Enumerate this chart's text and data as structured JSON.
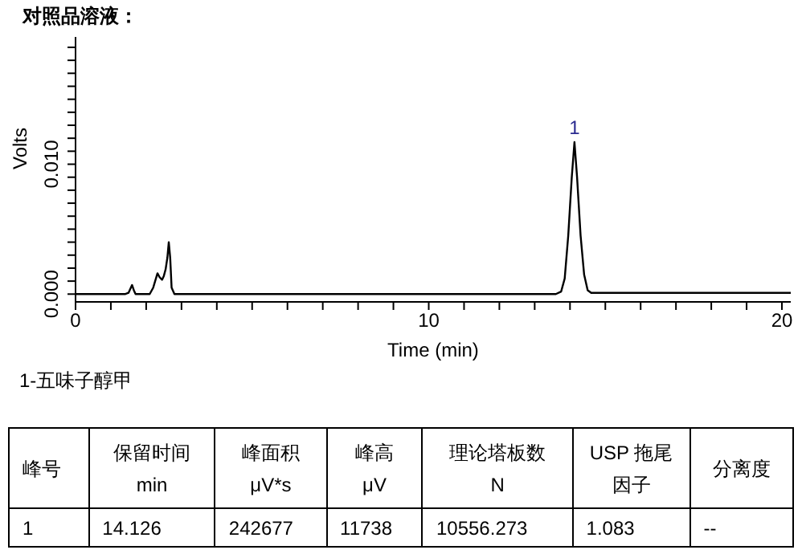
{
  "chart_data": {
    "type": "line",
    "title": "对照品溶液：",
    "xlabel": "Time (min)",
    "ylabel": "Volts",
    "x": [
      0,
      1.4,
      1.5,
      1.6,
      1.65,
      1.7,
      2.1,
      2.2,
      2.32,
      2.38,
      2.45,
      2.5,
      2.55,
      2.6,
      2.64,
      2.68,
      2.72,
      2.8,
      6,
      7,
      13.6,
      13.75,
      13.85,
      13.95,
      14.05,
      14.126,
      14.2,
      14.3,
      14.4,
      14.5,
      14.6,
      19,
      19.5,
      20.25
    ],
    "series": [
      {
        "color": "#000000",
        "values": [
          0,
          0,
          0.0001,
          0.0007,
          0.0003,
          0,
          0,
          0.0005,
          0.0016,
          0.0013,
          0.0011,
          0.0014,
          0.0019,
          0.0028,
          0.004,
          0.0028,
          0.0005,
          0,
          0,
          0,
          0,
          0.0002,
          0.0012,
          0.0045,
          0.009,
          0.0117,
          0.009,
          0.0045,
          0.0015,
          0.0003,
          0.0001,
          0.0001,
          0.0001,
          0.0001
        ]
      }
    ],
    "xlim": [
      0,
      20.25
    ],
    "xticks": [
      0,
      {
        "value": 1,
        "label": null
      },
      {
        "value": 2,
        "label": null
      },
      {
        "value": 3,
        "label": null
      },
      {
        "value": 4,
        "label": null
      },
      {
        "value": 5,
        "label": null
      },
      {
        "value": 6,
        "label": null
      },
      {
        "value": 7,
        "label": null
      },
      {
        "value": 8,
        "label": null
      },
      {
        "value": 9,
        "label": null
      },
      10,
      {
        "value": 11,
        "label": null
      },
      {
        "value": 12,
        "label": null
      },
      {
        "value": 13,
        "label": null
      },
      {
        "value": 14,
        "label": null
      },
      {
        "value": 15,
        "label": null
      },
      {
        "value": 16,
        "label": null
      },
      {
        "value": 17,
        "label": null
      },
      {
        "value": 18,
        "label": null
      },
      {
        "value": 19,
        "label": null
      },
      20
    ],
    "ylim": [
      -0.0006,
      0.0198
    ],
    "yticks": [
      {
        "value": 0,
        "label": "0.000"
      },
      {
        "value": 0.001,
        "label": null
      },
      {
        "value": 0.002,
        "label": null
      },
      {
        "value": 0.003,
        "label": null
      },
      {
        "value": 0.004,
        "label": null
      },
      {
        "value": 0.005,
        "label": null
      },
      {
        "value": 0.006,
        "label": null
      },
      {
        "value": 0.007,
        "label": null
      },
      {
        "value": 0.008,
        "label": null
      },
      {
        "value": 0.009,
        "label": null
      },
      {
        "value": 0.01,
        "label": "0.010"
      },
      {
        "value": 0.011,
        "label": null
      },
      {
        "value": 0.012,
        "label": null
      },
      {
        "value": 0.013,
        "label": null
      },
      {
        "value": 0.014,
        "label": null
      },
      {
        "value": 0.015,
        "label": null
      },
      {
        "value": 0.016,
        "label": null
      },
      {
        "value": 0.017,
        "label": null
      },
      {
        "value": 0.018,
        "label": null
      },
      {
        "value": 0.019,
        "label": null
      }
    ],
    "marker": "none",
    "line_style": "solid",
    "annotations": [
      {
        "text": "1",
        "x": 14.126,
        "y": 0.0117
      },
      "1-五味子醇甲",
      "峰号",
      "保留时间\nmin",
      "峰面积\nμV*s",
      "峰高\nμV",
      "理论塔板数\nN",
      "USP 拖尾因子",
      "分离度",
      "1",
      "14.126",
      "242677",
      "11738",
      "10556.273",
      "1.083",
      "--"
    ]
  }
}
